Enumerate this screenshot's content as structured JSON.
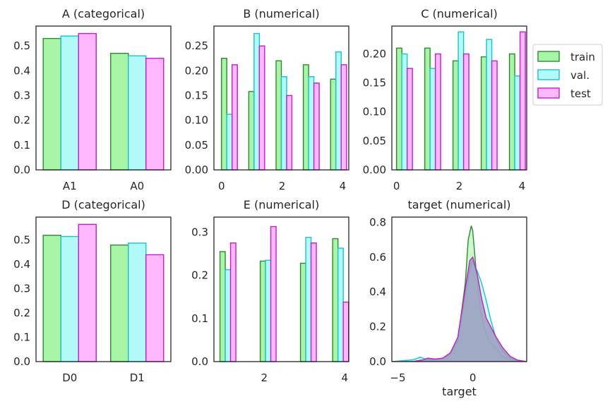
{
  "colors": {
    "train": "#2e8b2e",
    "train_fill": "#a8f5a8",
    "val": "#19c4c8",
    "val_fill": "#b2fafa",
    "test": "#c020c8",
    "test_fill": "#ffb8ff",
    "kde_overlap": "#9b9bbd"
  },
  "legend": {
    "position": "right",
    "items": [
      "train",
      "val.",
      "test"
    ]
  },
  "chart_data": [
    {
      "type": "bar",
      "title": "A (categorical)",
      "xlabel": "",
      "ylabel": "",
      "categories": [
        "A1",
        "A0"
      ],
      "ylim": [
        0,
        0.58
      ],
      "yticks": [
        "0.0",
        "0.1",
        "0.2",
        "0.3",
        "0.4",
        "0.5"
      ],
      "series": [
        {
          "name": "train",
          "values": [
            0.53,
            0.47
          ]
        },
        {
          "name": "val.",
          "values": [
            0.54,
            0.46
          ]
        },
        {
          "name": "test",
          "values": [
            0.55,
            0.45
          ]
        }
      ]
    },
    {
      "type": "bar",
      "title": "B (numerical)",
      "xlabel": "",
      "ylabel": "",
      "xlim": [
        -0.25,
        4.2
      ],
      "ylim": [
        0,
        0.29
      ],
      "xticks": [
        "0",
        "2",
        "4"
      ],
      "yticks": [
        "0.00",
        "0.05",
        "0.10",
        "0.15",
        "0.20",
        "0.25"
      ],
      "series": [
        {
          "name": "train",
          "x": [
            0.0,
            0.9,
            1.8,
            2.7,
            3.6
          ],
          "values": [
            0.225,
            0.158,
            0.22,
            0.212,
            0.183
          ]
        },
        {
          "name": "val.",
          "x": [
            0.0,
            0.9,
            1.8,
            2.7,
            3.6
          ],
          "values": [
            0.112,
            0.275,
            0.188,
            0.188,
            0.238
          ]
        },
        {
          "name": "test",
          "x": [
            0.0,
            0.9,
            1.8,
            2.7,
            3.6
          ],
          "values": [
            0.212,
            0.25,
            0.15,
            0.175,
            0.212
          ]
        }
      ]
    },
    {
      "type": "bar",
      "title": "C (numerical)",
      "xlabel": "",
      "ylabel": "",
      "xlim": [
        -0.15,
        4.15
      ],
      "ylim": [
        0,
        0.248
      ],
      "xticks": [
        "0",
        "2",
        "4"
      ],
      "yticks": [
        "0.00",
        "0.05",
        "0.10",
        "0.15",
        "0.20"
      ],
      "series": [
        {
          "name": "train",
          "x": [
            0.0,
            0.9,
            1.8,
            2.7,
            3.6
          ],
          "values": [
            0.21,
            0.21,
            0.188,
            0.195,
            0.2
          ]
        },
        {
          "name": "val.",
          "x": [
            0.0,
            0.9,
            1.8,
            2.7,
            3.6
          ],
          "values": [
            0.2,
            0.175,
            0.238,
            0.225,
            0.162
          ]
        },
        {
          "name": "test",
          "x": [
            0.0,
            0.9,
            1.8,
            2.7,
            3.6
          ],
          "values": [
            0.175,
            0.2,
            0.2,
            0.188,
            0.238
          ]
        }
      ]
    },
    {
      "type": "bar",
      "title": "D (categorical)",
      "xlabel": "",
      "ylabel": "",
      "categories": [
        "D0",
        "D1"
      ],
      "ylim": [
        0,
        0.595
      ],
      "yticks": [
        "0.0",
        "0.1",
        "0.2",
        "0.3",
        "0.4",
        "0.5"
      ],
      "series": [
        {
          "name": "train",
          "values": [
            0.52,
            0.48
          ]
        },
        {
          "name": "val.",
          "values": [
            0.515,
            0.488
          ]
        },
        {
          "name": "test",
          "values": [
            0.565,
            0.44
          ]
        }
      ]
    },
    {
      "type": "bar",
      "title": "E (numerical)",
      "xlabel": "",
      "ylabel": "",
      "xlim": [
        0.75,
        4.1
      ],
      "ylim": [
        0,
        0.335
      ],
      "xticks": [
        "2",
        "4"
      ],
      "yticks": [
        "0.0",
        "0.1",
        "0.2",
        "0.3"
      ],
      "series": [
        {
          "name": "train",
          "x": [
            0.9,
            1.9,
            2.9,
            3.7
          ],
          "values": [
            0.255,
            0.233,
            0.228,
            0.285
          ]
        },
        {
          "name": "val.",
          "x": [
            0.9,
            1.9,
            2.9,
            3.7
          ],
          "values": [
            0.213,
            0.235,
            0.288,
            0.263
          ]
        },
        {
          "name": "test",
          "x": [
            0.9,
            1.9,
            2.9,
            3.7
          ],
          "values": [
            0.275,
            0.313,
            0.275,
            0.138
          ]
        }
      ]
    },
    {
      "type": "area",
      "title": "target (numerical)",
      "xlabel": "target",
      "ylabel": "",
      "xlim": [
        -5.4,
        3.6
      ],
      "ylim": [
        0,
        0.83
      ],
      "xticks": [
        "−5",
        "0"
      ],
      "yticks": [
        "0.0",
        "0.2",
        "0.4",
        "0.6",
        "0.8"
      ],
      "series": [
        {
          "name": "train",
          "x": [
            -5.4,
            -4,
            -3.3,
            -3,
            -2.5,
            -2,
            -1.5,
            -1,
            -0.5,
            -0.3,
            -0.1,
            0,
            0.2,
            0.5,
            0.8,
            1.1,
            1.5,
            2,
            2.5,
            3.6
          ],
          "values": [
            0,
            0.0,
            0.01,
            0.015,
            0.01,
            0.015,
            0.04,
            0.12,
            0.45,
            0.7,
            0.78,
            0.75,
            0.55,
            0.3,
            0.18,
            0.12,
            0.08,
            0.03,
            0.008,
            0
          ]
        },
        {
          "name": "val.",
          "x": [
            -5.4,
            -4,
            -3.5,
            -3,
            -2.5,
            -2,
            -1.5,
            -1,
            -0.5,
            -0.2,
            0,
            0.3,
            0.6,
            0.9,
            1.2,
            1.6,
            2,
            2.5,
            3,
            3.6
          ],
          "values": [
            0,
            0.01,
            0.025,
            0.01,
            0.01,
            0.02,
            0.05,
            0.12,
            0.38,
            0.53,
            0.58,
            0.52,
            0.45,
            0.35,
            0.24,
            0.12,
            0.06,
            0.02,
            0.005,
            0
          ]
        },
        {
          "name": "test",
          "x": [
            -5.4,
            -4,
            -3.3,
            -3,
            -2.5,
            -2,
            -1.5,
            -1,
            -0.5,
            -0.2,
            0,
            0.3,
            0.6,
            0.9,
            1.2,
            1.5,
            2,
            2.5,
            3,
            3.6
          ],
          "values": [
            0,
            0.0,
            0.01,
            0.02,
            0.015,
            0.02,
            0.05,
            0.14,
            0.42,
            0.58,
            0.6,
            0.5,
            0.36,
            0.25,
            0.2,
            0.15,
            0.08,
            0.03,
            0.008,
            0
          ]
        }
      ]
    }
  ]
}
